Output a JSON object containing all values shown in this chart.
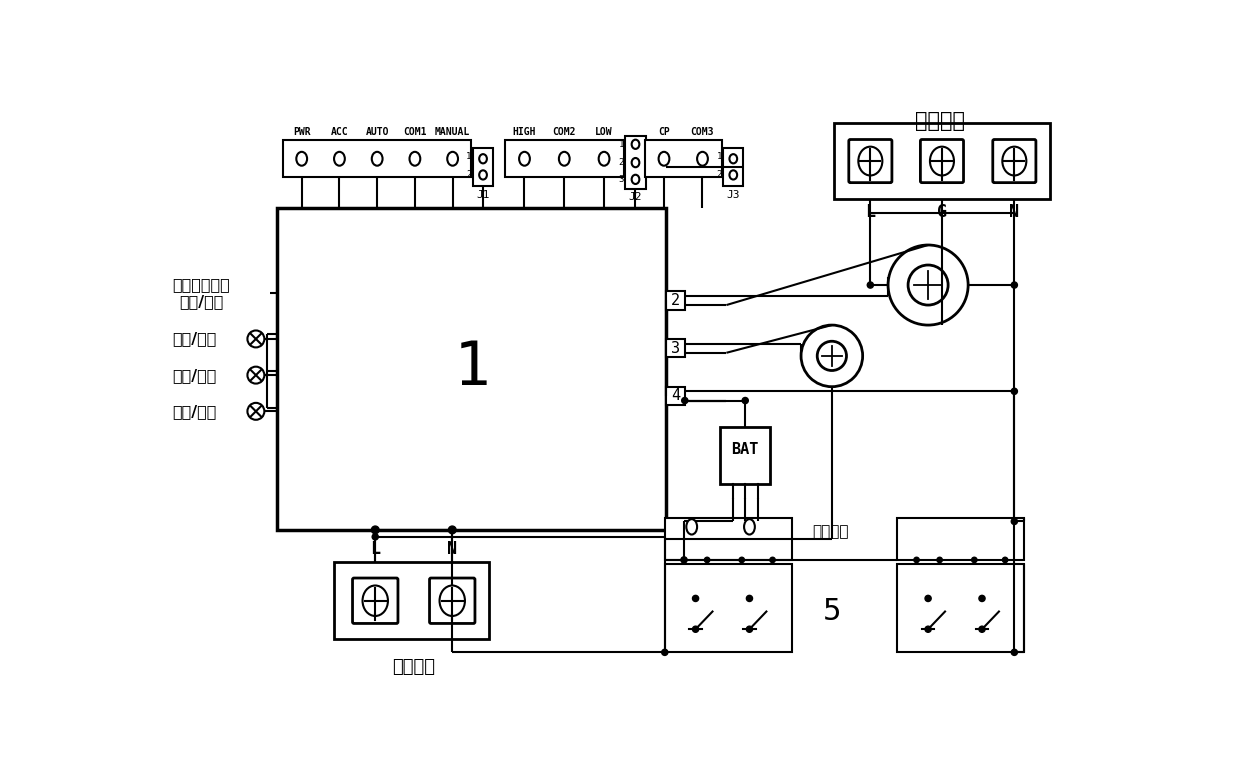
{
  "bg": "#ffffff",
  "lc": "#000000",
  "power_input_label": "电源输入",
  "power_output_label": "电源输出",
  "ctrl_out_label": "输出控制",
  "fault_line1": "故障报警指示",
  "fault_line2": "常亮/闪烁",
  "lamp1": "过压/欠压",
  "lamp2": "过载/空载",
  "lamp3": "短路/漏电",
  "b1": [
    "PWR",
    "ACC",
    "AUTO",
    "COM1",
    "MANUAL"
  ],
  "b2": [
    "HIGH",
    "COM2",
    "LOW"
  ],
  "b3": [
    "CP",
    "COM3"
  ],
  "sock_in": [
    "L",
    "G",
    "N"
  ],
  "sock_out": [
    "L",
    "N"
  ]
}
